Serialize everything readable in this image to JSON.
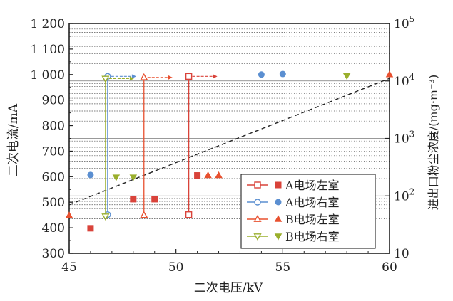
{
  "chart_data": {
    "type": "scatter",
    "xlabel": "二次电压/kV",
    "ylabel": "二次电流/mA",
    "y2label": "进出口粉尘浓度/(mg·m⁻³)",
    "xlim": [
      45,
      60
    ],
    "ylim": [
      300,
      1200
    ],
    "y2lim": [
      10,
      100000
    ],
    "y2scale": "log",
    "x_ticks": [
      "45",
      "50",
      "55",
      "60"
    ],
    "y_ticks": [
      "300",
      "400",
      "500",
      "600",
      "700",
      "800",
      "900",
      "1 000",
      "1 100",
      "1 200"
    ],
    "y2_ticks": [
      "10",
      "10²",
      "10³",
      "10⁴",
      "10⁵"
    ],
    "legend_position": "bottom-right",
    "series": [
      {
        "name": "A电场左室",
        "color": "#d9433a",
        "marker": "square",
        "current_points": [
          [
            46,
            398
          ],
          [
            48,
            512
          ],
          [
            49,
            512
          ],
          [
            51,
            605
          ]
        ],
        "concentration": {
          "x": 50.6,
          "inlet": 12000,
          "outlet": 47
        }
      },
      {
        "name": "A电场右室",
        "color": "#5b8fd1",
        "marker": "circle",
        "current_points": [
          [
            46,
            607
          ],
          [
            54,
            1000
          ],
          [
            55,
            1002
          ]
        ],
        "concentration": {
          "x": 46.8,
          "inlet": 12000,
          "outlet": 47
        }
      },
      {
        "name": "B电场左室",
        "color": "#e8502f",
        "marker": "triangle",
        "current_points": [
          [
            45,
            448
          ],
          [
            51.5,
            605
          ],
          [
            52,
            605
          ],
          [
            60,
            1000
          ]
        ],
        "concentration": {
          "x": 48.5,
          "inlet": 11500,
          "outlet": 46
        }
      },
      {
        "name": "B电场右室",
        "color": "#9aaf2c",
        "marker": "triangle-down",
        "current_points": [
          [
            47.2,
            598
          ],
          [
            48,
            598
          ],
          [
            58,
            995
          ]
        ],
        "concentration": {
          "x": 46.7,
          "inlet": 11000,
          "outlet": 44
        }
      }
    ],
    "trend_line": {
      "points": [
        [
          45,
          490
        ],
        [
          60,
          985
        ]
      ],
      "style": "dashed"
    }
  }
}
